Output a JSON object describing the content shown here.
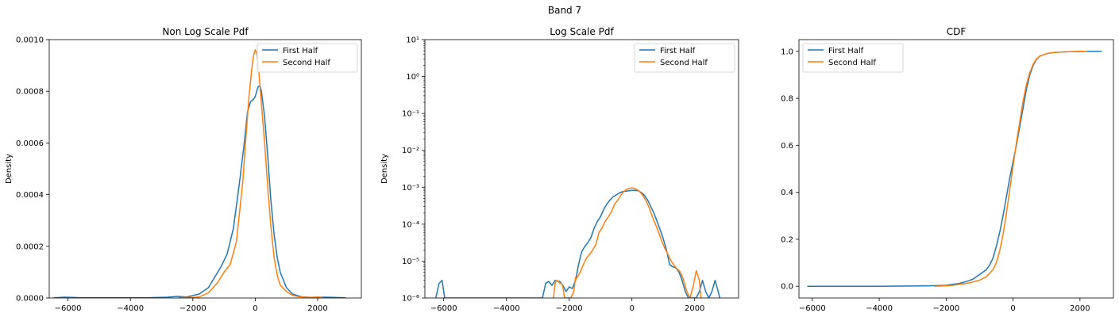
{
  "figure": {
    "suptitle": "Band 7"
  },
  "colors": {
    "first_half": "#1f77b4",
    "second_half": "#ff7f0e"
  },
  "chart_data": [
    {
      "type": "line",
      "title": "Non Log Scale Pdf",
      "xlabel": "",
      "ylabel": "Density",
      "xlim": [
        -6600,
        3400
      ],
      "ylim": [
        0,
        0.001
      ],
      "yscale": "linear",
      "xticks": [
        -6000,
        -4000,
        -2000,
        0,
        2000
      ],
      "xtick_labels": [
        "−6000",
        "−4000",
        "−2000",
        "0",
        "2000"
      ],
      "yticks": [
        0,
        0.0002,
        0.0004,
        0.0006,
        0.0008,
        0.001
      ],
      "ytick_labels": [
        "0.0000",
        "0.0002",
        "0.0004",
        "0.0006",
        "0.0008",
        "0.0010"
      ],
      "legend": {
        "position": "upper right",
        "entries": [
          "First Half",
          "Second Half"
        ]
      },
      "series": [
        {
          "name": "First Half",
          "x": [
            -6450,
            -6100,
            -5500,
            -4500,
            -3500,
            -2800,
            -2500,
            -2200,
            -1800,
            -1500,
            -1300,
            -1100,
            -900,
            -700,
            -500,
            -350,
            -250,
            -150,
            -50,
            0,
            50,
            100,
            150,
            200,
            300,
            400,
            500,
            600,
            700,
            800,
            1000,
            1200,
            1500,
            1800,
            2200,
            2500,
            2900
          ],
          "y": [
            5e-07,
            3e-06,
            1e-06,
            1e-06,
            1e-06,
            3e-06,
            6e-06,
            4e-06,
            1.5e-05,
            4e-05,
            8e-05,
            0.00012,
            0.00017,
            0.00027,
            0.00045,
            0.0006,
            0.00072,
            0.00076,
            0.00077,
            0.00078,
            0.0008,
            0.00082,
            0.00082,
            0.0008,
            0.0007,
            0.00055,
            0.00038,
            0.00025,
            0.00016,
            0.0001,
            4e-05,
            1.5e-05,
            4e-06,
            2e-06,
            3e-06,
            2e-06,
            1e-06
          ]
        },
        {
          "name": "Second Half",
          "x": [
            -2450,
            -2300,
            -2000,
            -1800,
            -1500,
            -1200,
            -1000,
            -800,
            -600,
            -400,
            -300,
            -200,
            -100,
            -50,
            0,
            50,
            100,
            200,
            300,
            400,
            500,
            600,
            700,
            800,
            1000,
            1200,
            1400,
            1600,
            1800,
            2000,
            2200
          ],
          "y": [
            1e-06,
            2e-06,
            2e-06,
            4e-06,
            2e-05,
            6e-05,
            0.0001,
            0.00013,
            0.00022,
            0.00045,
            0.00062,
            0.00078,
            0.0009,
            0.00094,
            0.00096,
            0.00095,
            0.0009,
            0.00075,
            0.0006,
            0.00043,
            0.00028,
            0.00016,
            9e-05,
            5e-05,
            2.5e-05,
            1e-05,
            5e-06,
            3e-06,
            2e-06,
            4e-06,
            1e-06
          ]
        }
      ]
    },
    {
      "type": "line",
      "title": "Log Scale Pdf",
      "xlabel": "",
      "ylabel": "Density",
      "xlim": [
        -6600,
        3400
      ],
      "ylim": [
        1e-06,
        10
      ],
      "yscale": "log",
      "xticks": [
        -6000,
        -4000,
        -2000,
        0,
        2000
      ],
      "xtick_labels": [
        "−6000",
        "−4000",
        "−2000",
        "0",
        "2000"
      ],
      "yticks": [
        1e-06,
        1e-05,
        0.0001,
        0.001,
        0.01,
        0.1,
        1,
        10
      ],
      "ytick_labels": [
        "10⁻⁶",
        "10⁻⁵",
        "10⁻⁴",
        "10⁻³",
        "10⁻²",
        "10⁻¹",
        "10⁰",
        "10¹"
      ],
      "legend": {
        "position": "upper right",
        "entries": [
          "First Half",
          "Second Half"
        ]
      },
      "series": [
        {
          "name": "First Half",
          "x": [
            -6250,
            -6150,
            -6050,
            -5970,
            -2850,
            -2750,
            -2650,
            -2550,
            -2450,
            -2300,
            -2200,
            -2100,
            -2000,
            -1900,
            -1800,
            -1700,
            -1600,
            -1500,
            -1400,
            -1300,
            -1200,
            -1100,
            -1000,
            -900,
            -800,
            -700,
            -600,
            -500,
            -400,
            -300,
            -200,
            -100,
            0,
            100,
            200,
            300,
            400,
            500,
            600,
            700,
            800,
            900,
            1000,
            1100,
            1200,
            1300,
            1400,
            1500,
            1600,
            1700,
            1800,
            1900,
            2050,
            2150,
            2250,
            2350,
            2450,
            2550,
            2650,
            2750,
            2800
          ],
          "y": [
            1e-06,
            2.5e-06,
            3e-06,
            1e-06,
            1e-06,
            2.5e-06,
            2.8e-06,
            2.2e-06,
            3e-06,
            2.8e-06,
            2.2e-06,
            1.5e-06,
            2e-06,
            1.8e-06,
            3e-06,
            8e-06,
            1.8e-05,
            2.5e-05,
            3.2e-05,
            4.5e-05,
            8e-05,
            0.00012,
            0.00016,
            0.00025,
            0.00035,
            0.00045,
            0.00055,
            0.00062,
            0.0007,
            0.00076,
            0.00078,
            0.0008,
            0.00082,
            0.00082,
            0.0008,
            0.00072,
            0.0006,
            0.00045,
            0.0003,
            0.0002,
            0.00012,
            7e-05,
            4e-05,
            2e-05,
            8e-06,
            7e-06,
            6.5e-06,
            5e-06,
            3e-06,
            1.5e-06,
            1e-06,
            1e-06,
            1e-06,
            1.5e-06,
            3e-06,
            1.5e-06,
            1e-06,
            1.5e-06,
            3e-06,
            1.5e-06,
            1e-06
          ]
        },
        {
          "name": "Second Half",
          "x": [
            -2500,
            -2450,
            -2400,
            -2350,
            -2300,
            -2250,
            -2200,
            -2150,
            -2100,
            -1950,
            -1850,
            -1800,
            -1750,
            -1650,
            -1550,
            -1450,
            -1350,
            -1250,
            -1150,
            -1050,
            -950,
            -850,
            -750,
            -650,
            -550,
            -450,
            -350,
            -250,
            -150,
            -50,
            0,
            50,
            150,
            250,
            350,
            450,
            550,
            650,
            750,
            850,
            950,
            1050,
            1150,
            1250,
            1350,
            1450,
            1550,
            1650,
            1750,
            1850,
            1950,
            2050,
            2150,
            2200
          ],
          "y": [
            1e-06,
            2.5e-06,
            3e-06,
            2.8e-06,
            2.5e-06,
            2.5e-06,
            2e-06,
            1e-06,
            1e-06,
            1e-06,
            1.5e-06,
            3.5e-06,
            3.5e-06,
            5e-06,
            8e-06,
            1.2e-05,
            1.5e-05,
            2e-05,
            2.8e-05,
            6e-05,
            8e-05,
            0.00012,
            0.00016,
            0.00022,
            0.00035,
            0.00045,
            0.00062,
            0.00078,
            0.0009,
            0.00094,
            0.00096,
            0.00095,
            0.00088,
            0.00075,
            0.0006,
            0.00043,
            0.00028,
            0.00016,
            0.0001,
            6e-05,
            3.5e-05,
            2.2e-05,
            1.5e-05,
            1e-05,
            7.5e-06,
            6e-06,
            5e-06,
            3e-06,
            1.5e-06,
            1e-06,
            2e-06,
            5.5e-06,
            3e-06,
            1e-06
          ]
        }
      ]
    },
    {
      "type": "line",
      "title": "CDF",
      "xlabel": "",
      "ylabel": "",
      "xlim": [
        -6400,
        3000
      ],
      "ylim": [
        -0.05,
        1.05
      ],
      "yscale": "linear",
      "xticks": [
        -6000,
        -4000,
        -2000,
        0,
        2000
      ],
      "xtick_labels": [
        "−6000",
        "−4000",
        "−2000",
        "0",
        "2000"
      ],
      "yticks": [
        0,
        0.2,
        0.4,
        0.6,
        0.8,
        1.0
      ],
      "ytick_labels": [
        "0.0",
        "0.2",
        "0.4",
        "0.6",
        "0.8",
        "1.0"
      ],
      "legend": {
        "position": "upper left",
        "entries": [
          "First Half",
          "Second Half"
        ]
      },
      "series": [
        {
          "name": "First Half",
          "x": [
            -6150,
            -5000,
            -4000,
            -3000,
            -2500,
            -2000,
            -1800,
            -1600,
            -1400,
            -1200,
            -1000,
            -900,
            -800,
            -700,
            -600,
            -500,
            -400,
            -300,
            -200,
            -100,
            0,
            100,
            200,
            300,
            400,
            500,
            600,
            700,
            800,
            1000,
            1200,
            1400,
            1600,
            1800,
            2000,
            2200,
            2650
          ],
          "y": [
            0,
            0,
            0,
            0.001,
            0.002,
            0.004,
            0.008,
            0.012,
            0.02,
            0.03,
            0.05,
            0.06,
            0.07,
            0.09,
            0.12,
            0.17,
            0.23,
            0.3,
            0.38,
            0.46,
            0.53,
            0.6,
            0.68,
            0.76,
            0.84,
            0.9,
            0.94,
            0.965,
            0.98,
            0.99,
            0.995,
            0.997,
            0.998,
            0.999,
            0.999,
            1.0,
            1.0
          ]
        },
        {
          "name": "Second Half",
          "x": [
            -2350,
            -2000,
            -1800,
            -1600,
            -1400,
            -1200,
            -1000,
            -800,
            -600,
            -500,
            -400,
            -300,
            -200,
            -100,
            0,
            100,
            200,
            300,
            400,
            500,
            600,
            700,
            800,
            1000,
            1200,
            1400,
            1600,
            1800,
            2000,
            2200
          ],
          "y": [
            0,
            0.002,
            0.004,
            0.008,
            0.012,
            0.018,
            0.026,
            0.04,
            0.07,
            0.1,
            0.15,
            0.22,
            0.31,
            0.41,
            0.51,
            0.61,
            0.7,
            0.79,
            0.86,
            0.91,
            0.945,
            0.968,
            0.98,
            0.99,
            0.995,
            0.997,
            0.998,
            0.999,
            1.0,
            1.0
          ]
        }
      ]
    }
  ]
}
